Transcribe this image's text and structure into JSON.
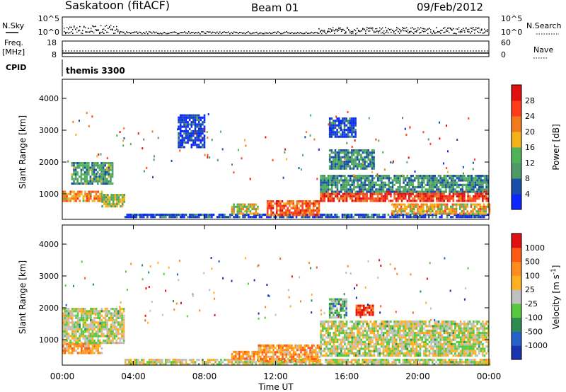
{
  "header": {
    "station": "Saskatoon (fitACF)",
    "beam": "Beam 01",
    "date": "09/Feb/2012"
  },
  "strip_labels": {
    "nsky": "N.Sky",
    "nsearch": "N.Search",
    "freq_line1": "Freq.",
    "freq_line2": "[MHz]",
    "nave": "Nave",
    "cpid": "CPID",
    "cpid_value": "themis 3300",
    "nsky_ticks": [
      "10^5",
      "10^0"
    ],
    "nsearch_ticks": [
      "10^5",
      "10^0"
    ],
    "freq_ticks": [
      "18",
      "8"
    ],
    "nave_ticks": [
      "60",
      "0"
    ]
  },
  "colors": {
    "power_scale": [
      "#0c26ff",
      "#1a4fa8",
      "#4e9a66",
      "#4fb25a",
      "#f3b21a",
      "#f07a1c",
      "#ff3b1a",
      "#e01010"
    ],
    "velocity_scale": [
      "#1932b0",
      "#2460c8",
      "#2e8a50",
      "#58c840",
      "#c0c0c0",
      "#ffb020",
      "#ff8c1c",
      "#ff5a14",
      "#e01010"
    ],
    "ground_scatter": "#b8b8b0"
  },
  "chart_data": [
    {
      "type": "heatmap",
      "name": "power",
      "ylabel": "Slant Range [km]",
      "yticks": [
        "1000",
        "2000",
        "3000",
        "4000"
      ],
      "ylim": [
        200,
        4600
      ],
      "xlim": [
        0,
        24
      ],
      "colorbar_label": "Power [dB]",
      "colorbar_ticks": [
        "4",
        "8",
        "12",
        "16",
        "20",
        "24",
        "28"
      ],
      "regions": [
        {
          "t0": 0.0,
          "t1": 2.2,
          "r0": 750,
          "r1": 1100,
          "level": 0.65
        },
        {
          "t0": 0.5,
          "t1": 2.8,
          "r0": 1300,
          "r1": 2000,
          "level": 0.35
        },
        {
          "t0": 2.2,
          "t1": 3.5,
          "r0": 600,
          "r1": 1000,
          "level": 0.45
        },
        {
          "t0": 3.5,
          "t1": 24.0,
          "r0": 250,
          "r1": 380,
          "level": 0.15
        },
        {
          "t0": 9.5,
          "t1": 11.0,
          "r0": 400,
          "r1": 700,
          "level": 0.55
        },
        {
          "t0": 11.5,
          "t1": 14.5,
          "r0": 350,
          "r1": 800,
          "level": 0.75
        },
        {
          "t0": 14.5,
          "t1": 24.0,
          "r0": 800,
          "r1": 1100,
          "level": 0.85
        },
        {
          "t0": 14.5,
          "t1": 24.0,
          "r0": 1100,
          "r1": 1600,
          "level": 0.3
        },
        {
          "t0": 18.5,
          "t1": 24.0,
          "r0": 400,
          "r1": 700,
          "level": 0.6
        },
        {
          "t0": 15.0,
          "t1": 17.5,
          "r0": 1800,
          "r1": 2400,
          "level": 0.3
        },
        {
          "t0": 6.5,
          "t1": 8.0,
          "r0": 2500,
          "r1": 3500,
          "level": 0.1
        },
        {
          "t0": 15.0,
          "t1": 16.5,
          "r0": 2800,
          "r1": 3400,
          "level": 0.15
        }
      ]
    },
    {
      "type": "heatmap",
      "name": "velocity",
      "ylabel": "Slant Range [km]",
      "yticks": [
        "1000",
        "2000",
        "3000",
        "4000"
      ],
      "ylim": [
        200,
        4600
      ],
      "xlim": [
        0,
        24
      ],
      "xticks": [
        "00:00",
        "04:00",
        "08:00",
        "12:00",
        "16:00",
        "20:00",
        "00:00"
      ],
      "xlabel": "Time UT",
      "colorbar_label": "Velocity [m s^-1]",
      "colorbar_ticks": [
        "1000",
        "500",
        "100",
        "25",
        "-25",
        "-100",
        "-500",
        "-1000"
      ],
      "regions": [
        {
          "t0": 0.0,
          "t1": 2.2,
          "r0": 600,
          "r1": 900,
          "level": 0.7
        },
        {
          "t0": 0.0,
          "t1": 3.5,
          "r0": 900,
          "r1": 2000,
          "level": 0.5
        },
        {
          "t0": 3.5,
          "t1": 24.0,
          "r0": 200,
          "r1": 400,
          "level": 0.5
        },
        {
          "t0": 9.5,
          "t1": 11.0,
          "r0": 400,
          "r1": 650,
          "level": 0.7
        },
        {
          "t0": 11.0,
          "t1": 14.5,
          "r0": 300,
          "r1": 850,
          "level": 0.68
        },
        {
          "t0": 14.5,
          "t1": 24.0,
          "r0": 500,
          "r1": 1600,
          "level": 0.5
        },
        {
          "t0": 15.0,
          "t1": 16.0,
          "r0": 1700,
          "r1": 2300,
          "level": 0.35
        },
        {
          "t0": 16.5,
          "t1": 17.5,
          "r0": 1800,
          "r1": 2100,
          "level": 0.88
        }
      ]
    }
  ]
}
